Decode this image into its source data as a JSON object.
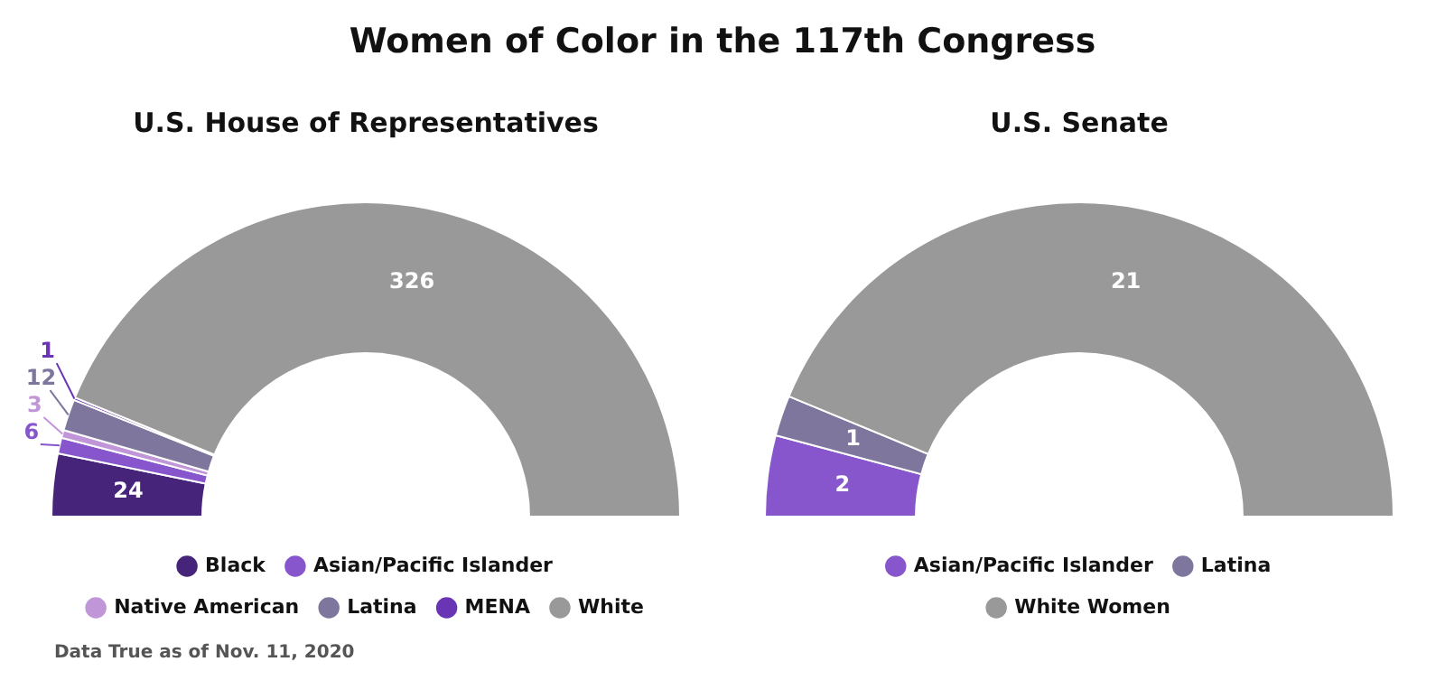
{
  "chart_data": [
    {
      "type": "donut",
      "title": "Women of Color in the 117th Congress",
      "subtitle": "U.S. House of Representatives",
      "categories": [
        "Black",
        "Asian/Pacific Islander",
        "Native American",
        "Latina",
        "MENA",
        "White"
      ],
      "values": [
        24,
        6,
        3,
        12,
        1,
        326
      ],
      "colors": [
        "#46247a",
        "#8755cc",
        "#c096d8",
        "#7e769c",
        "#6a35b5",
        "#999999"
      ],
      "data_labels": true,
      "legend": "bottom",
      "annotations": [
        "Data True as of Nov. 11, 2020"
      ]
    },
    {
      "type": "donut",
      "subtitle": "U.S. Senate",
      "categories": [
        "Asian/Pacific Islander",
        "Latina",
        "White Women"
      ],
      "values": [
        2,
        1,
        21
      ],
      "colors": [
        "#8755cc",
        "#7e769c",
        "#999999"
      ],
      "data_labels": true,
      "legend": "bottom"
    }
  ]
}
